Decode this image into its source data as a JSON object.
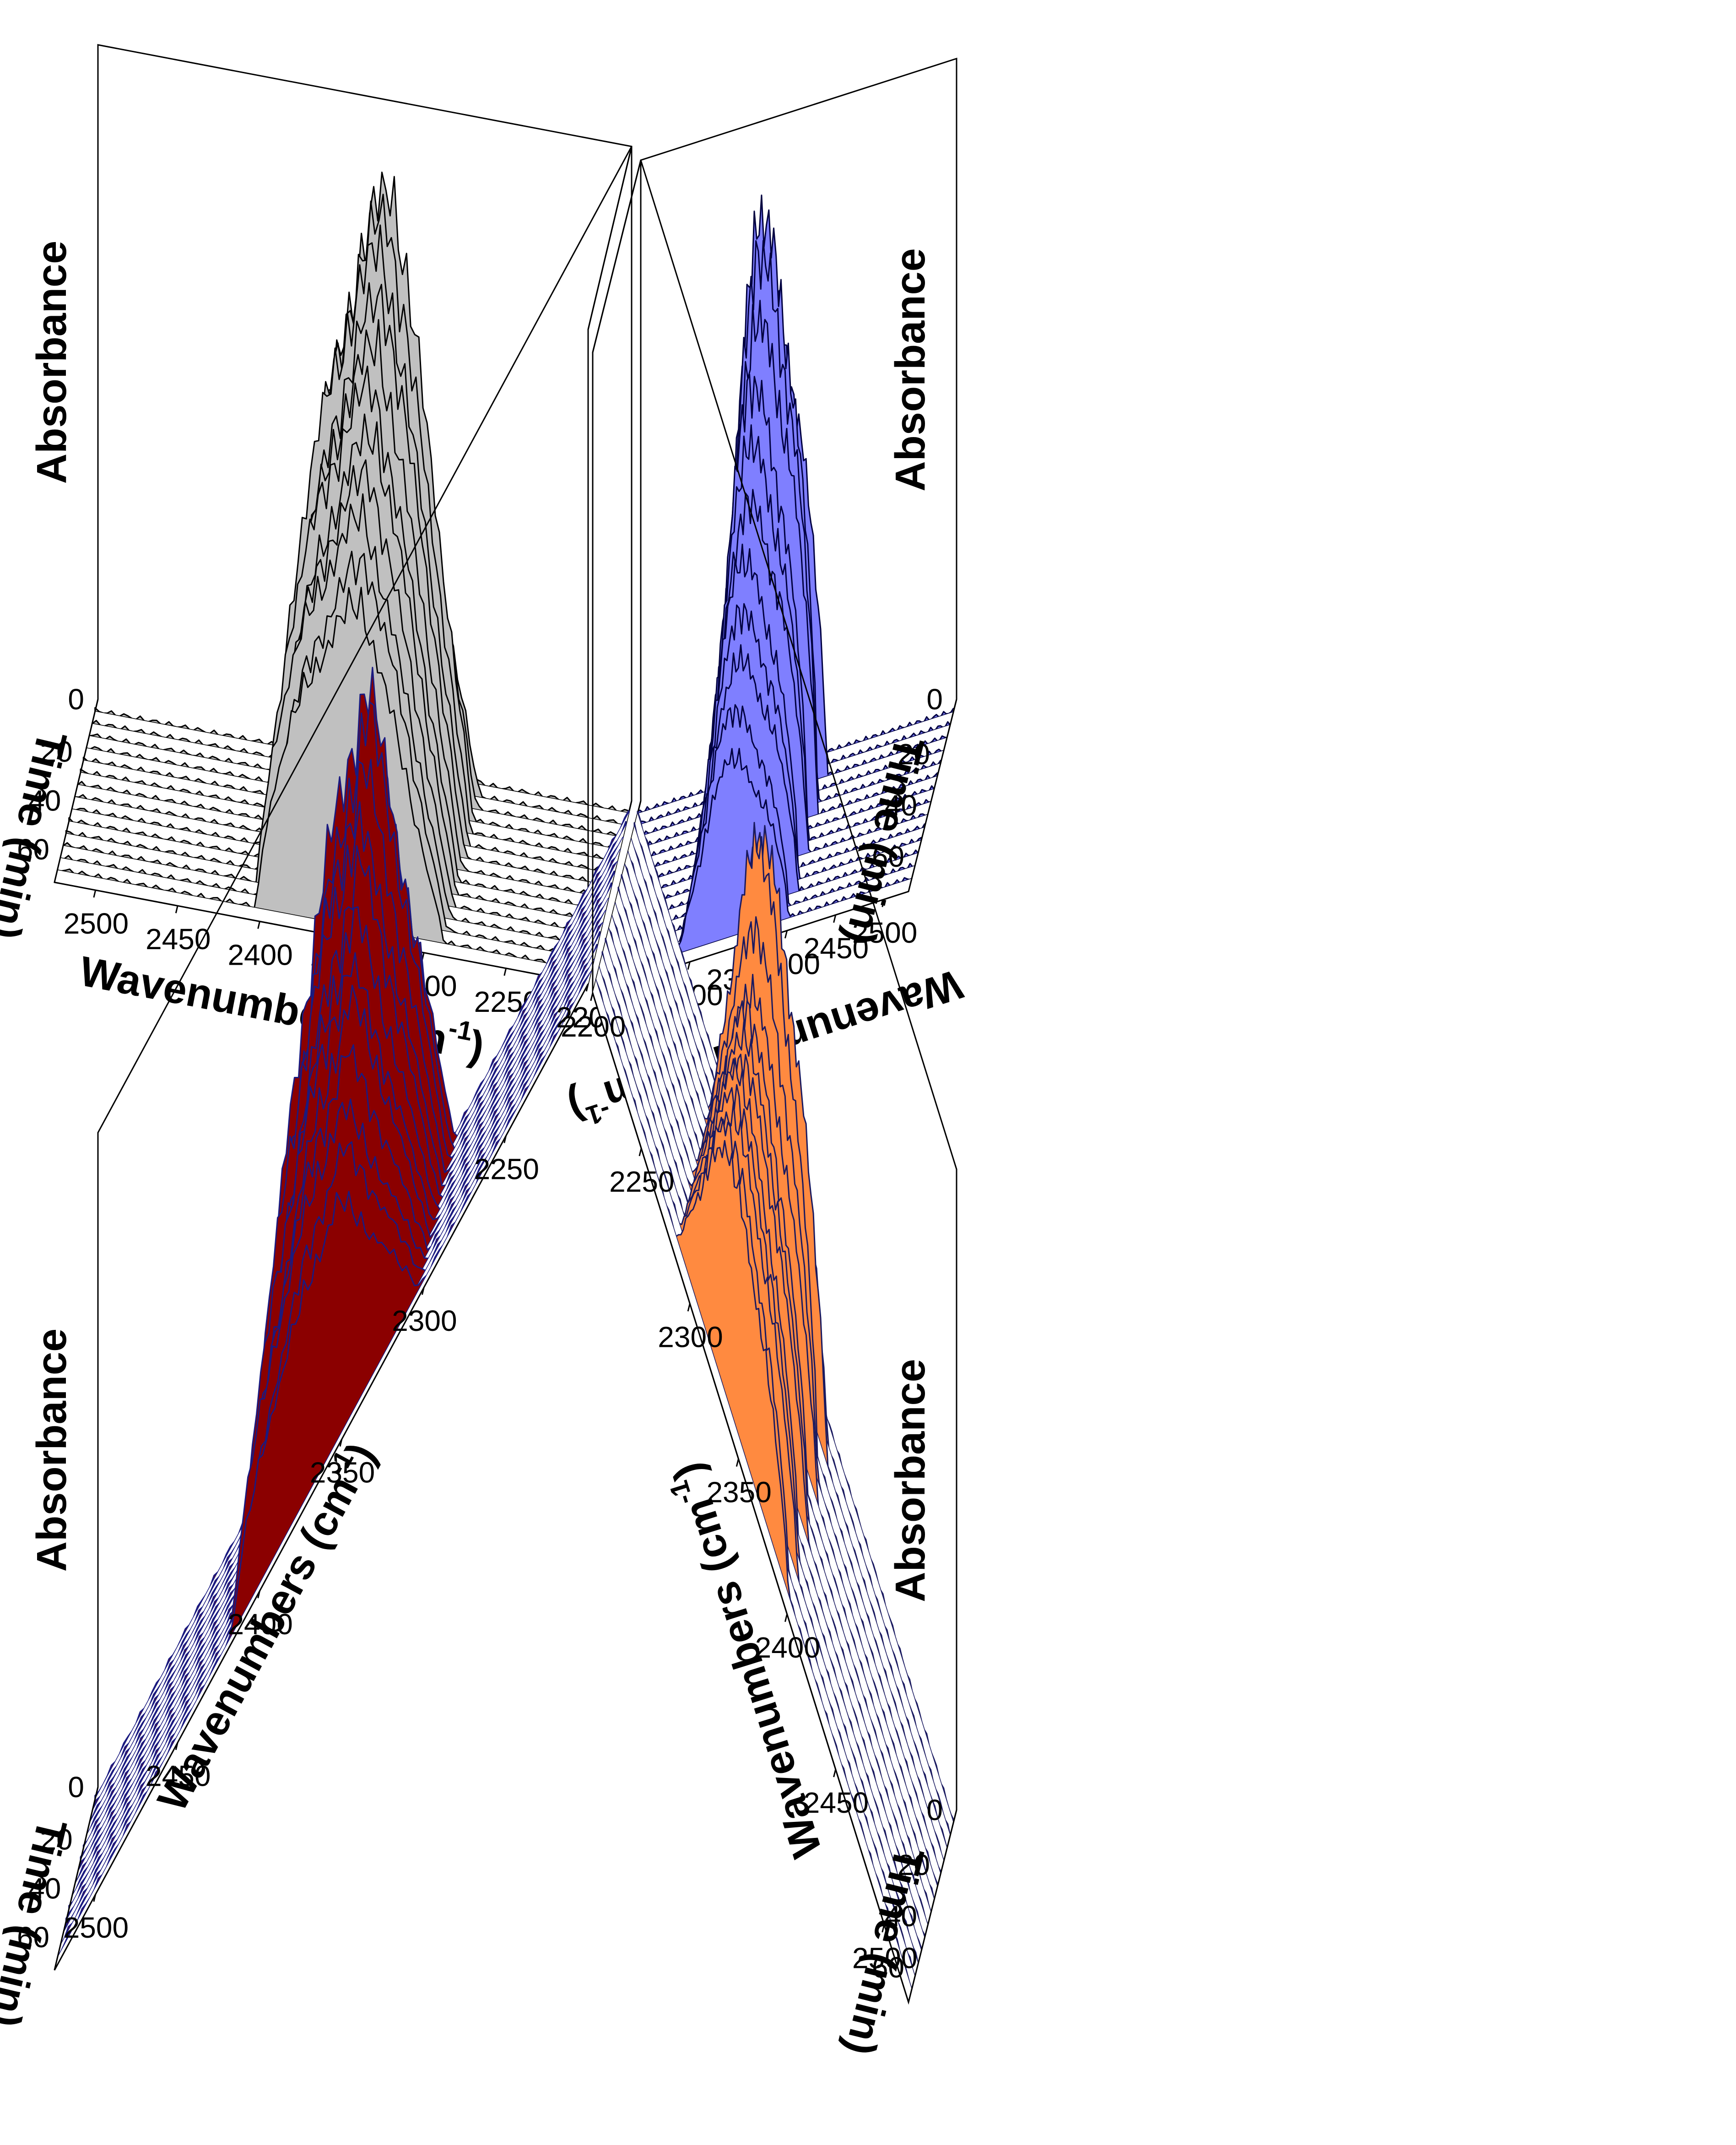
{
  "chart_data": [
    {
      "type": "waterfall-3d",
      "xlabel": "Wavenumbers (cm",
      "xlabel_sup": "-1",
      "xlabel_close": ")",
      "ylabel": "Time (min)",
      "zlabel": "Absorbance",
      "x_ticks": [
        "2500",
        "2450",
        "2400",
        "2350",
        "2300",
        "2250",
        "2200"
      ],
      "y_ticks": [
        "20",
        "40",
        "60"
      ],
      "z_ticks": [
        "0"
      ],
      "x_range": [
        2525,
        2200
      ],
      "time_range": [
        0,
        75
      ],
      "time_slices": [
        5,
        10,
        15,
        20,
        25,
        30,
        35,
        40,
        45,
        50,
        55,
        60,
        65,
        70
      ],
      "peak_center": 2360,
      "peak_heights": [
        0.05,
        0.7,
        0.85,
        1.0,
        0.97,
        0.93,
        0.88,
        0.82,
        0.77,
        0.72,
        0.67,
        0.62,
        0.57,
        0.52
      ],
      "fill_color": "#C0C0C0",
      "line_color": "#000000"
    },
    {
      "type": "waterfall-3d",
      "xlabel": "Wavenumbers (cm",
      "xlabel_sup": "-1",
      "xlabel_close": ")",
      "ylabel": "Time (min)",
      "zlabel": "Absorbance",
      "x_ticks": [
        "2500",
        "2450",
        "2400",
        "2350",
        "2300",
        "2250",
        "2200"
      ],
      "y_ticks": [
        "20",
        "40",
        "60"
      ],
      "z_ticks": [
        "0"
      ],
      "x_range": [
        2525,
        2200
      ],
      "time_range": [
        0,
        75
      ],
      "time_slices": [
        5,
        10,
        15,
        20,
        25,
        30,
        35,
        40,
        45,
        50,
        55,
        60,
        65,
        70
      ],
      "peak_center": 2355,
      "peak_heights": [
        0.08,
        0.35,
        0.85,
        1.0,
        0.95,
        0.86,
        0.78,
        0.7,
        0.62,
        0.55,
        0.48,
        0.42,
        0.36,
        0.3
      ],
      "fill_color": "#7F7FFF",
      "line_color": "#000040"
    },
    {
      "type": "waterfall-3d",
      "xlabel": "Wavenumbers (cm",
      "xlabel_sup": "-1",
      "xlabel_close": ")",
      "ylabel": "Time (min)",
      "zlabel": "Absorbance",
      "x_ticks": [
        "2500",
        "2450",
        "2400",
        "2350",
        "2300",
        "2250",
        "2200"
      ],
      "y_ticks": [
        "20",
        "40",
        "60"
      ],
      "z_ticks": [
        "0"
      ],
      "x_range": [
        2525,
        2200
      ],
      "time_range": [
        0,
        75
      ],
      "time_slices": [
        5,
        10,
        15,
        20,
        25,
        30,
        35,
        40,
        45,
        50,
        55,
        60,
        65,
        70
      ],
      "peak_center": 2375,
      "peak_heights": [
        0.05,
        0.9,
        1.0,
        0.96,
        0.9,
        0.84,
        0.78,
        0.72,
        0.67,
        0.62,
        0.56,
        0.5,
        0.44,
        0.38
      ],
      "fill_color": "#8B0000",
      "line_color": "#1A1A80"
    },
    {
      "type": "waterfall-3d",
      "xlabel": "Wavenumbers (cm",
      "xlabel_sup": "-1",
      "xlabel_close": ")",
      "ylabel": "Time (min)",
      "zlabel": "Absorbance",
      "x_ticks": [
        "2500",
        "2450",
        "2400",
        "2350",
        "2300",
        "2250",
        "2200"
      ],
      "y_ticks": [
        "20",
        "40",
        "60"
      ],
      "z_ticks": [
        "0"
      ],
      "x_range": [
        2525,
        2200
      ],
      "time_range": [
        0,
        75
      ],
      "time_slices": [
        5,
        10,
        15,
        20,
        25,
        30,
        35,
        40,
        45,
        50,
        55,
        60,
        65,
        70
      ],
      "peak_center": 2355,
      "peak_heights": [
        0.05,
        0.55,
        0.72,
        0.72,
        0.6,
        0.52,
        0.5,
        0.48,
        0.47,
        0.46,
        0.45,
        0.44,
        0.43,
        0.42
      ],
      "fill_color": "#FF8A40",
      "line_color": "#1A1A60"
    }
  ]
}
